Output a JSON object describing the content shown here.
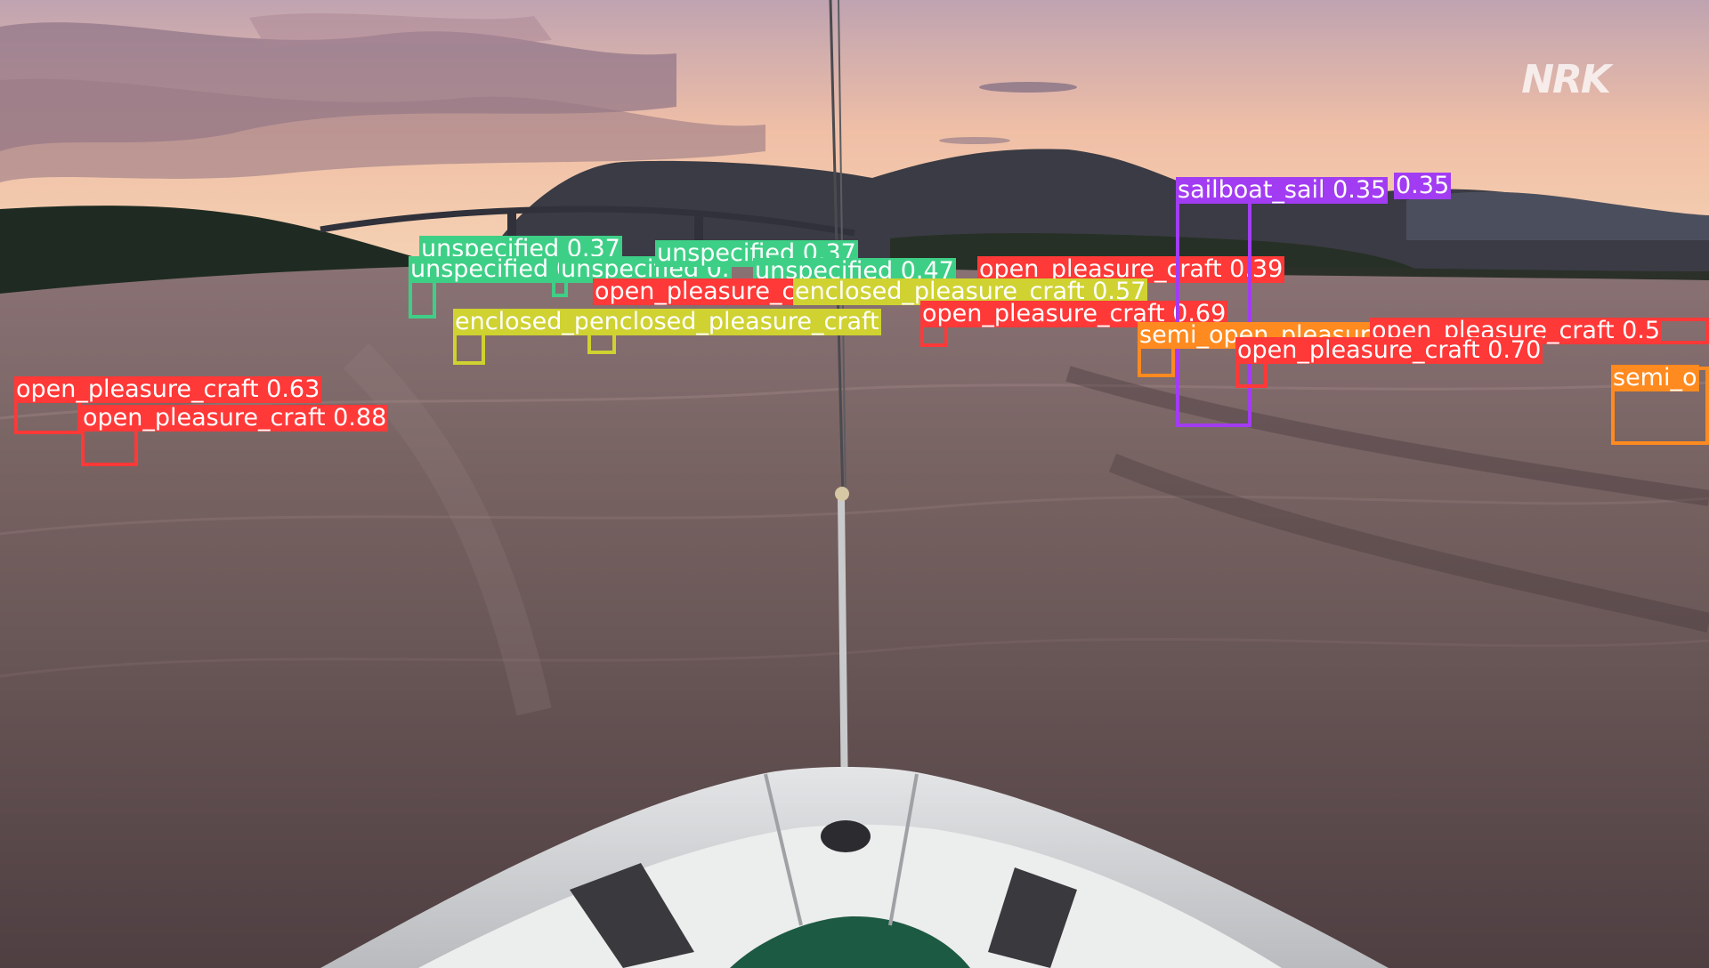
{
  "image": {
    "watermark_logo": "NRK",
    "description_colors": {
      "sky_top": "#c9a9b2",
      "sky_mid": "#f3c3a6",
      "sky_horizon": "#f6d8b8",
      "water": "#6a5859",
      "mountains": "#3b3c44",
      "ship": "#d9dadc"
    }
  },
  "class_colors": {
    "unspecified": "#3ecf86",
    "open_pleasure_craft": "#ff3838",
    "enclosed_pleasure_craft": "#cfd231",
    "sailboat_sail": "#a23cf2",
    "semi_open_pleasure_craft": "#ff8a1f"
  },
  "detections": [
    {
      "class": "unspecified",
      "label": "unspecified 0.37"
    },
    {
      "class": "unspecified",
      "label": "unspecified 0.67"
    },
    {
      "class": "unspecified",
      "label": "unspecified 0."
    },
    {
      "class": "unspecified",
      "label": "unspecified 0.37"
    },
    {
      "class": "unspecified",
      "label": "unspecified 0.47"
    },
    {
      "class": "open_pleasure_craft",
      "label": "open_pleasure_craft 0.39"
    },
    {
      "class": "open_pleasure_craft",
      "label": "open_pleasure_craft"
    },
    {
      "class": "enclosed_pleasure_craft",
      "label": "enclosed_pleasure_craft 0.57"
    },
    {
      "class": "enclosed_pleasure_craft",
      "label": "enclosed_pleasure_craft"
    },
    {
      "class": "enclosed_pleasure_craft",
      "label": "enclosed_pleasure_craft"
    },
    {
      "class": "open_pleasure_craft",
      "label": "open_pleasure_craft 0.69"
    },
    {
      "class": "sailboat_sail",
      "label": "sailboat_sail 0.35"
    },
    {
      "class": "sailboat_sail",
      "label": "0.35"
    },
    {
      "class": "semi_open_pleasure_craft",
      "label": "semi_open_pleasure_craft"
    },
    {
      "class": "open_pleasure_craft",
      "label": "open_pleasure_craft 0.5"
    },
    {
      "class": "open_pleasure_craft",
      "label": "open_pleasure_craft 0.70"
    },
    {
      "class": "semi_open_pleasure_craft",
      "label": "semi_o"
    },
    {
      "class": "open_pleasure_craft",
      "label": "open_pleasure_craft 0.63"
    },
    {
      "class": "open_pleasure_craft",
      "label": "open_pleasure_craft 0.88"
    }
  ]
}
